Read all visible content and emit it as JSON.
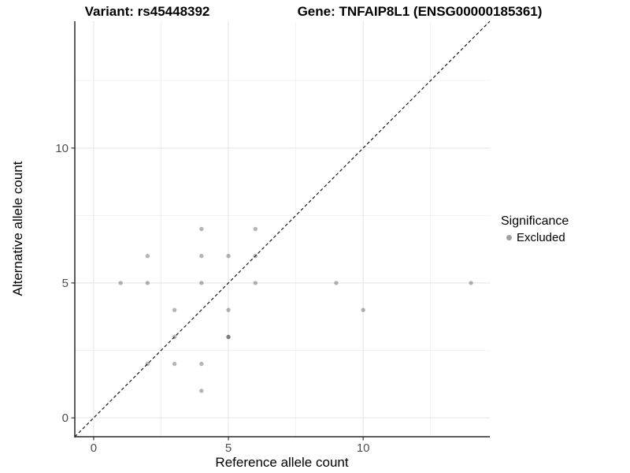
{
  "chart_data": {
    "type": "scatter",
    "titles": {
      "left": "Variant: rs45448392",
      "right": "Gene: TNFAIP8L1 (ENSG00000185361)"
    },
    "xlabel": "Reference allele count",
    "ylabel": "Alternative allele count",
    "xlim": [
      -0.7,
      14.7
    ],
    "ylim": [
      -0.7,
      14.7
    ],
    "x_major_ticks": [
      0,
      5,
      10
    ],
    "y_major_ticks": [
      0,
      5,
      10
    ],
    "x_minor_gridlines": [
      2.5,
      7.5,
      12.5
    ],
    "y_minor_gridlines": [
      2.5,
      7.5,
      12.5
    ],
    "grid": "major+minor",
    "identity_line": {
      "show": true,
      "style": "dashed",
      "color": "#000000",
      "from": [
        -0.7,
        -0.7
      ],
      "to": [
        14.7,
        14.7
      ]
    },
    "series": [
      {
        "name": "Excluded",
        "point_color_on_white": "#b5b5b5",
        "point_alpha_black": 0.29,
        "points": [
          [
            1,
            5
          ],
          [
            2,
            2
          ],
          [
            2,
            5
          ],
          [
            2,
            6
          ],
          [
            3,
            2
          ],
          [
            3,
            3
          ],
          [
            3,
            4
          ],
          [
            4,
            1
          ],
          [
            4,
            2
          ],
          [
            4,
            5
          ],
          [
            4,
            6
          ],
          [
            4,
            7
          ],
          [
            5,
            3
          ],
          [
            5,
            3
          ],
          [
            5,
            4
          ],
          [
            5,
            6
          ],
          [
            6,
            5
          ],
          [
            6,
            6
          ],
          [
            6,
            7
          ],
          [
            9,
            5
          ],
          [
            10,
            4
          ],
          [
            14,
            5
          ]
        ],
        "note": "point (5,3) plotted twice (darker overlap)"
      }
    ],
    "legend": {
      "title": "Significance",
      "position": "right-middle",
      "items": [
        {
          "label": "Excluded",
          "marker_color": "#a0a0a0"
        }
      ]
    }
  },
  "colors": {
    "background": "#ffffff",
    "grid_major": "#e6e6e6",
    "grid_minor": "#f2f2f2",
    "axis_line": "#262626",
    "tick_label": "#4d4d4d",
    "text": "#000000"
  }
}
